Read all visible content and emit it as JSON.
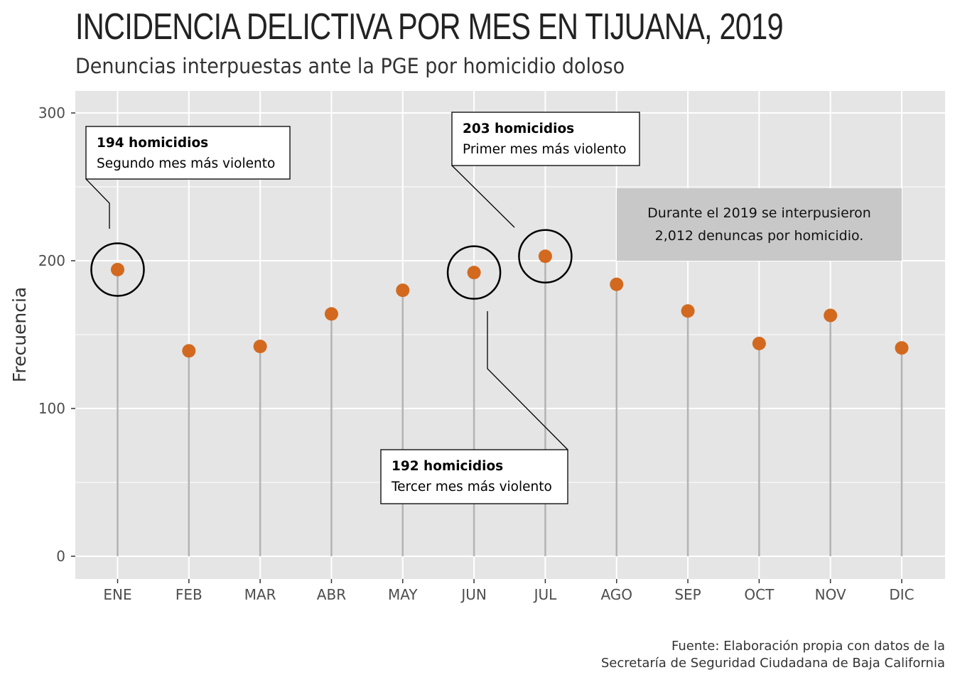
{
  "title": "INCIDENCIA DELICTIVA POR MES EN TIJUANA, 2019",
  "subtitle": "Denuncias interpuestas ante la PGE por homicidio doloso",
  "caption_lines": [
    "Fuente: Elaboración propia con datos de la",
    "Secretaría de Seguridad Ciudadana de Baja California"
  ],
  "colors": {
    "point": "#D2691E",
    "stem": "#B3B3B3",
    "panel": "#E5E5E5",
    "grid": "#FFFFFF",
    "note_box": "#C8C8C8"
  },
  "chart_data": {
    "type": "lollipop",
    "title": "INCIDENCIA DELICTIVA POR MES EN TIJUANA, 2019",
    "subtitle": "Denuncias interpuestas ante la PGE por homicidio doloso",
    "xlabel": "",
    "ylabel": "Frecuencia",
    "categories": [
      "ENE",
      "FEB",
      "MAR",
      "ABR",
      "MAY",
      "JUN",
      "JUL",
      "AGO",
      "SEP",
      "OCT",
      "NOV",
      "DIC"
    ],
    "values": [
      194,
      139,
      142,
      164,
      180,
      192,
      203,
      184,
      166,
      144,
      163,
      141
    ],
    "ylim": [
      -15,
      315
    ],
    "yticks": [
      0,
      100,
      200,
      300
    ],
    "grid": true,
    "legend": "none",
    "annotations": [
      {
        "category": "ENE",
        "bold": "194 homicidios",
        "text": "Segundo mes más violento"
      },
      {
        "category": "JUL",
        "bold": "203 homicidios",
        "text": "Primer mes más violento"
      },
      {
        "category": "JUN",
        "bold": "192 homicidios",
        "text": "Tercer mes más violento"
      }
    ],
    "note_lines": [
      "Durante el 2019 se interpusieron",
      "2,012 denuncas por homicidio."
    ]
  }
}
